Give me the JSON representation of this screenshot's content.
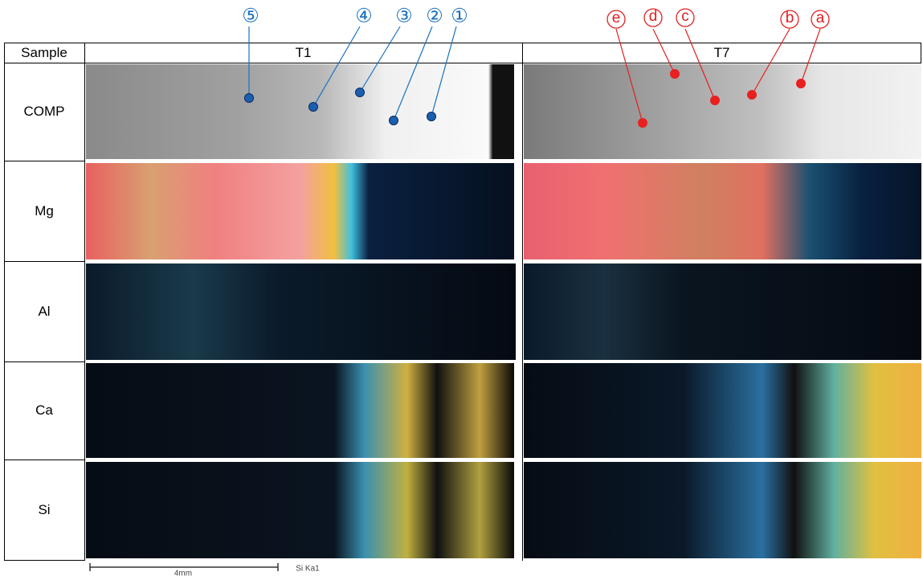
{
  "header": {
    "sample": "Sample",
    "t1": "T1",
    "t7": "T7"
  },
  "rows": [
    "COMP",
    "Mg",
    "Al",
    "Ca",
    "Si"
  ],
  "markers_t1": [
    "⑤",
    "④",
    "③",
    "②",
    "①"
  ],
  "markers_t7": [
    "e",
    "d",
    "c",
    "b",
    "a"
  ],
  "scale": {
    "bar": "4mm",
    "label": "Si Ka1"
  }
}
